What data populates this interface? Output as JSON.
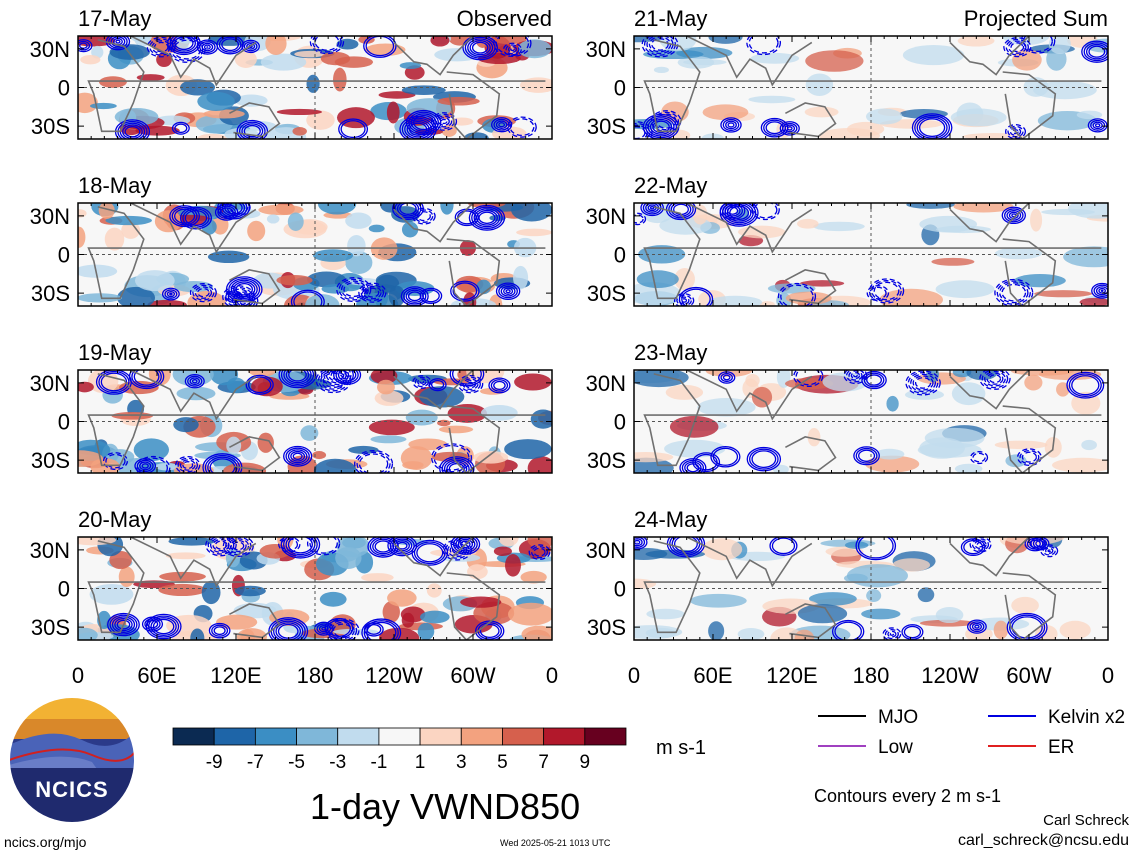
{
  "chart_data": {
    "type": "heatmap",
    "title": "1-day VWND850",
    "units_label": "m s-1",
    "columns": [
      {
        "label": "Observed",
        "panels": [
          "17-May",
          "18-May",
          "19-May",
          "20-May"
        ]
      },
      {
        "label": "Projected Sum",
        "panels": [
          "21-May",
          "22-May",
          "23-May",
          "24-May"
        ]
      }
    ],
    "y_ticks": [
      "30N",
      "0",
      "30S"
    ],
    "x_ticks": [
      "0",
      "60E",
      "120E",
      "180",
      "120W",
      "60W",
      "0"
    ],
    "xlim": [
      0,
      360
    ],
    "ylim": [
      -40,
      40
    ],
    "colorbar": {
      "ticks": [
        "-9",
        "-7",
        "-5",
        "-3",
        "-1",
        "1",
        "3",
        "5",
        "7",
        "9"
      ],
      "colors": [
        "#0b2a52",
        "#1e65a8",
        "#3b8ec4",
        "#7fb7d9",
        "#c1dcee",
        "#f7f7f7",
        "#fbd5c2",
        "#f3a27f",
        "#d6604d",
        "#b2182b",
        "#67001f"
      ]
    },
    "legend": [
      {
        "label": "MJO",
        "color": "#000000"
      },
      {
        "label": "Kelvin x2",
        "color": "#0000e0"
      },
      {
        "label": "Low",
        "color": "#a040c0"
      },
      {
        "label": "ER",
        "color": "#e02020"
      }
    ],
    "contour_note": "Contours every 2 m s-1"
  },
  "branding": {
    "logo_text": "NCICS",
    "url": "ncics.org/mjo",
    "timestamp": "Wed 2025-05-21 1013 UTC",
    "author": "Carl Schreck",
    "email": "carl_schreck@ncsu.edu"
  }
}
